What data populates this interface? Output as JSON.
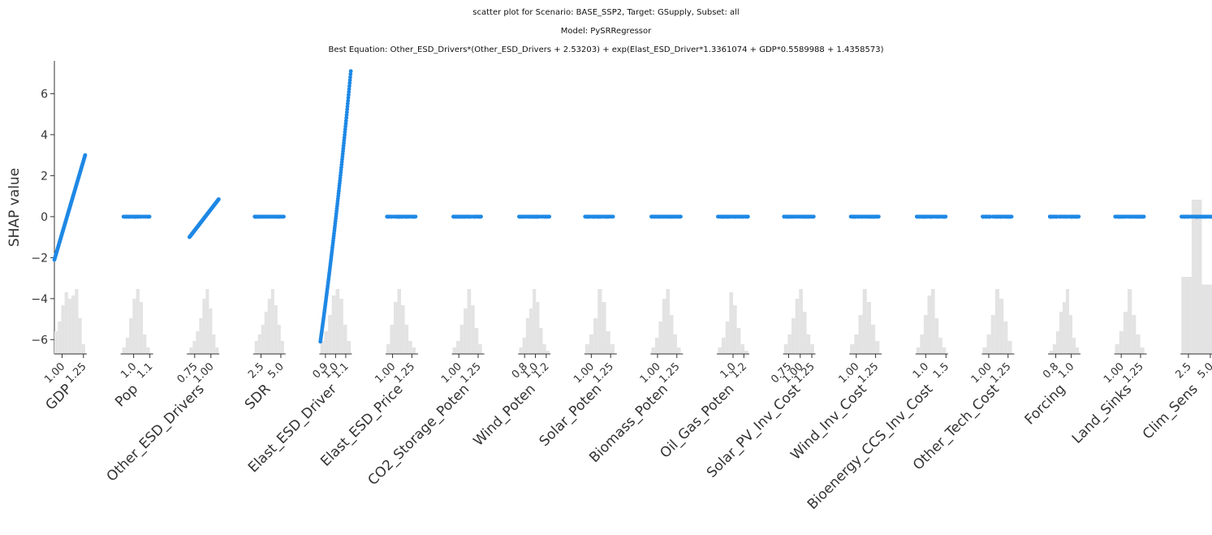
{
  "titles": {
    "line1": "scatter plot for Scenario: BASE_SSP2, Target: GSupply, Subset: all",
    "line2": "Model: PySRRegressor",
    "line3": "Best Equation: Other_ESD_Drivers*(Other_ESD_Drivers + 2.53203) + exp(Elast_ESD_Driver*1.3361074 + GDP*0.5589988 + 1.4358573)"
  },
  "chart_data": {
    "type": "scatter",
    "ylabel": "SHAP value",
    "ylim": [
      -6.7,
      7.6
    ],
    "yticks": [
      -6,
      -4,
      -2,
      0,
      2,
      4,
      6
    ],
    "colors": {
      "points": "#1e88e5",
      "hist": "#e3e3e3",
      "axis": "#333333"
    },
    "panels": [
      {
        "feature": "GDP",
        "xlim": [
          0.91,
          1.29
        ],
        "xticks": [
          1.0,
          1.25
        ],
        "xtick_labels": [
          "1.00",
          "1.25"
        ],
        "shap_range": [
          -2.1,
          3.0
        ],
        "x_range": [
          0.91,
          1.27
        ],
        "hist": [
          0.35,
          0.5,
          0.75,
          0.95,
          0.85,
          0.9,
          1.0,
          0.55,
          0.15
        ]
      },
      {
        "feature": "Pop",
        "xlim": [
          0.92,
          1.12
        ],
        "xticks": [
          1.0,
          1.1
        ],
        "xtick_labels": [
          "1.0",
          "1.1"
        ],
        "shap_range": [
          0,
          0
        ],
        "x_range": [
          0.93,
          1.1
        ],
        "hist": [
          0.1,
          0.25,
          0.55,
          0.85,
          1.0,
          0.8,
          0.3,
          0.1
        ]
      },
      {
        "feature": "Other_ESD_Drivers",
        "xlim": [
          0.63,
          1.13
        ],
        "xticks": [
          0.75,
          1.0
        ],
        "xtick_labels": [
          "0.75",
          "1.00"
        ],
        "shap_range": [
          -1.0,
          0.85
        ],
        "x_range": [
          0.67,
          1.12
        ],
        "hist": [
          0.1,
          0.2,
          0.35,
          0.55,
          0.85,
          1.0,
          0.7,
          0.3,
          0.1
        ]
      },
      {
        "feature": "SDR",
        "xlim": [
          1.5,
          5.6
        ],
        "xticks": [
          2.5,
          5.0
        ],
        "xtick_labels": [
          "2.5",
          "5.0"
        ],
        "shap_range": [
          0,
          0
        ],
        "x_range": [
          1.7,
          5.4
        ],
        "hist": [
          0.2,
          0.3,
          0.45,
          0.65,
          0.85,
          1.0,
          0.75,
          0.45,
          0.2
        ]
      },
      {
        "feature": "Elast_ESD_Driver",
        "xlim": [
          0.84,
          1.16
        ],
        "xticks": [
          0.9,
          1.0,
          1.1
        ],
        "xtick_labels": [
          "0.9",
          "1.0",
          "1.1"
        ],
        "shap_range": [
          -6.1,
          7.1
        ],
        "x_range": [
          0.85,
          1.15
        ],
        "hist": [
          0.2,
          0.35,
          0.6,
          0.9,
          1.0,
          0.85,
          0.45,
          0.2
        ]
      },
      {
        "feature": "Elast_ESD_Price",
        "xlim": [
          0.91,
          1.33
        ],
        "xticks": [
          1.0,
          1.25
        ],
        "xtick_labels": [
          "1.00",
          "1.25"
        ],
        "shap_range": [
          0,
          0
        ],
        "x_range": [
          0.92,
          1.3
        ],
        "hist": [
          0.15,
          0.45,
          0.8,
          1.0,
          0.75,
          0.45,
          0.2,
          0.1
        ]
      },
      {
        "feature": "CO2_Storage_Poten",
        "xlim": [
          0.91,
          1.33
        ],
        "xticks": [
          1.0,
          1.25
        ],
        "xtick_labels": [
          "1.00",
          "1.25"
        ],
        "shap_range": [
          0,
          0
        ],
        "x_range": [
          0.92,
          1.3
        ],
        "hist": [
          0.1,
          0.2,
          0.45,
          0.7,
          1.0,
          0.75,
          0.4,
          0.15
        ]
      },
      {
        "feature": "Wind_Poten",
        "xlim": [
          0.68,
          1.28
        ],
        "xticks": [
          0.8,
          1.0,
          1.2
        ],
        "xtick_labels": [
          "0.8",
          "1.0",
          "1.2"
        ],
        "shap_range": [
          0,
          0
        ],
        "x_range": [
          0.7,
          1.26
        ],
        "hist": [
          0.1,
          0.25,
          0.55,
          0.7,
          1.0,
          0.8,
          0.4,
          0.15,
          0.05
        ]
      },
      {
        "feature": "Solar_Poten",
        "xlim": [
          0.91,
          1.33
        ],
        "xticks": [
          1.0,
          1.25
        ],
        "xtick_labels": [
          "1.00",
          "1.25"
        ],
        "shap_range": [
          0,
          0
        ],
        "x_range": [
          0.92,
          1.3
        ],
        "hist": [
          0.15,
          0.3,
          0.55,
          1.0,
          0.8,
          0.35,
          0.15
        ]
      },
      {
        "feature": "Biomass_Poten",
        "xlim": [
          0.91,
          1.33
        ],
        "xticks": [
          1.0,
          1.25
        ],
        "xtick_labels": [
          "1.00",
          "1.25"
        ],
        "shap_range": [
          0,
          0
        ],
        "x_range": [
          0.92,
          1.3
        ],
        "hist": [
          0.1,
          0.25,
          0.5,
          0.85,
          1.0,
          0.6,
          0.3,
          0.1
        ]
      },
      {
        "feature": "Oil_Gas_Poten",
        "xlim": [
          0.7,
          1.3
        ],
        "xticks": [
          1.0,
          1.2
        ],
        "xtick_labels": [
          "1.0",
          "1.2"
        ],
        "shap_range": [
          0,
          0
        ],
        "x_range": [
          0.72,
          1.28
        ],
        "hist": [
          0.1,
          0.25,
          0.5,
          0.95,
          0.75,
          0.4,
          0.15,
          0.05
        ]
      },
      {
        "feature": "Solar_PV_Inv_Cost",
        "xlim": [
          0.63,
          1.33
        ],
        "xticks": [
          0.75,
          1.0,
          1.25
        ],
        "xtick_labels": [
          "0.75",
          "1.00",
          "1.25"
        ],
        "shap_range": [
          0,
          0
        ],
        "x_range": [
          0.65,
          1.3
        ],
        "hist": [
          0.15,
          0.3,
          0.55,
          0.85,
          1.0,
          0.65,
          0.3,
          0.15
        ]
      },
      {
        "feature": "Wind_Inv_Cost",
        "xlim": [
          0.91,
          1.33
        ],
        "xticks": [
          1.0,
          1.25
        ],
        "xtick_labels": [
          "1.00",
          "1.25"
        ],
        "shap_range": [
          0,
          0
        ],
        "x_range": [
          0.92,
          1.3
        ],
        "hist": [
          0.15,
          0.3,
          0.6,
          1.0,
          0.8,
          0.45,
          0.2
        ]
      },
      {
        "feature": "Bioenergy_CCS_Inv_Cost",
        "xlim": [
          0.75,
          1.55
        ],
        "xticks": [
          1.0,
          1.5
        ],
        "xtick_labels": [
          "1.0",
          "1.5"
        ],
        "shap_range": [
          0,
          0
        ],
        "x_range": [
          0.77,
          1.5
        ],
        "hist": [
          0.1,
          0.3,
          0.6,
          0.9,
          1.0,
          0.55,
          0.25,
          0.1
        ]
      },
      {
        "feature": "Other_Tech_Cost",
        "xlim": [
          0.91,
          1.33
        ],
        "xticks": [
          1.0,
          1.25
        ],
        "xtick_labels": [
          "1.00",
          "1.25"
        ],
        "shap_range": [
          0,
          0
        ],
        "x_range": [
          0.92,
          1.3
        ],
        "hist": [
          0.1,
          0.3,
          0.6,
          1.0,
          0.85,
          0.5,
          0.2
        ]
      },
      {
        "feature": "Forcing",
        "xlim": [
          0.7,
          1.12
        ],
        "xticks": [
          0.8,
          1.0
        ],
        "xtick_labels": [
          "0.8",
          "1.0"
        ],
        "shap_range": [
          0,
          0
        ],
        "x_range": [
          0.72,
          1.1
        ],
        "hist": [
          0.05,
          0.15,
          0.35,
          0.65,
          0.8,
          1.0,
          0.6,
          0.25,
          0.1
        ]
      },
      {
        "feature": "Land_Sinks",
        "xlim": [
          0.91,
          1.33
        ],
        "xticks": [
          1.0,
          1.25
        ],
        "xtick_labels": [
          "1.00",
          "1.25"
        ],
        "shap_range": [
          0,
          0
        ],
        "x_range": [
          0.92,
          1.3
        ],
        "hist": [
          0.15,
          0.35,
          0.65,
          1.0,
          0.6,
          0.3,
          0.1
        ]
      },
      {
        "feature": "Clim_Sens",
        "xlim": [
          1.6,
          5.3
        ],
        "xticks": [
          2.5,
          5.0
        ],
        "xtick_labels": [
          "2.5",
          "5.0"
        ],
        "shap_range": [
          0,
          0
        ],
        "x_range": [
          1.7,
          5.2
        ],
        "hist": [
          0.5,
          1.0,
          0.45
        ]
      }
    ]
  }
}
